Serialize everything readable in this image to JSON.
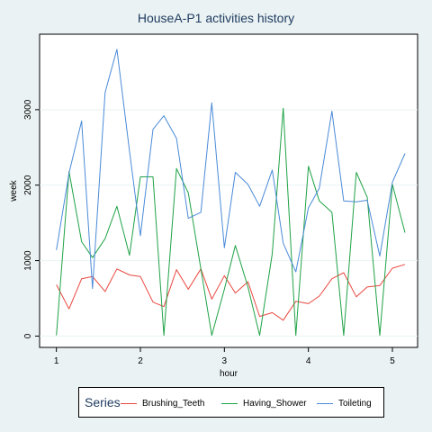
{
  "chart_data": {
    "type": "line",
    "title": "HouseA-P1 activities history",
    "xlabel": "hour",
    "ylabel": "week",
    "xlim": [
      0.8,
      5.3
    ],
    "ylim": [
      -150,
      4000
    ],
    "xticks": [
      "1",
      "2",
      "3",
      "4",
      "5"
    ],
    "yticks": [
      "0",
      "1000",
      "2000",
      "3000"
    ],
    "grid": true,
    "legend": {
      "title": "Series",
      "position": "bottom"
    },
    "x": [
      1.0,
      1.15,
      1.3,
      1.43,
      1.58,
      1.72,
      1.87,
      2.0,
      2.15,
      2.28,
      2.43,
      2.57,
      2.72,
      2.85,
      3.0,
      3.13,
      3.28,
      3.42,
      3.57,
      3.7,
      3.85,
      4.0,
      4.13,
      4.28,
      4.42,
      4.57,
      4.7,
      4.85,
      5.0,
      5.15
    ],
    "series": [
      {
        "name": "Brushing_Teeth",
        "color": "#e8463f",
        "values": [
          680,
          360,
          760,
          790,
          590,
          890,
          810,
          790,
          450,
          390,
          880,
          620,
          890,
          490,
          800,
          570,
          720,
          260,
          310,
          210,
          460,
          430,
          530,
          760,
          840,
          520,
          650,
          670,
          900,
          950
        ]
      },
      {
        "name": "Having_Shower",
        "color": "#1fa246",
        "values": [
          10,
          2180,
          1250,
          1040,
          1290,
          1720,
          1070,
          2110,
          2110,
          10,
          2220,
          1900,
          890,
          10,
          620,
          1200,
          650,
          10,
          1090,
          3020,
          10,
          2250,
          1790,
          1640,
          10,
          2170,
          1840,
          10,
          2010,
          1370
        ]
      },
      {
        "name": "Toileting",
        "color": "#4a8ad8",
        "values": [
          1140,
          2160,
          2850,
          630,
          3230,
          3800,
          2450,
          1330,
          2740,
          2920,
          2620,
          1560,
          1640,
          3090,
          1170,
          2170,
          2010,
          1720,
          2200,
          1230,
          850,
          1700,
          1960,
          2980,
          1790,
          1780,
          1800,
          1060,
          2040,
          2420
        ]
      }
    ]
  }
}
